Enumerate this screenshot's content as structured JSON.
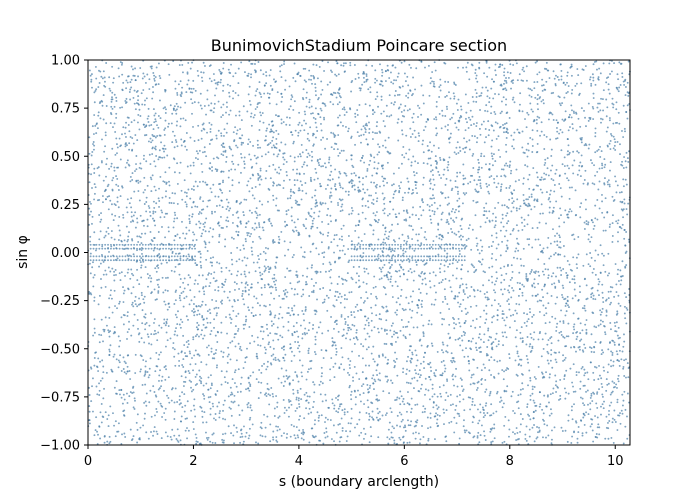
{
  "chart_data": {
    "type": "scatter",
    "title": "BunimovichStadium Poincare section",
    "xlabel": "s (boundary arclength)",
    "ylabel": "sin φ",
    "xlim": [
      0,
      10.28
    ],
    "ylim": [
      -1.0,
      1.0
    ],
    "x_ticks": [
      "0",
      "2",
      "4",
      "6",
      "8",
      "10"
    ],
    "x_tick_values": [
      0,
      2,
      4,
      6,
      8,
      10
    ],
    "y_ticks": [
      "−1.00",
      "−0.75",
      "−0.50",
      "−0.25",
      "0.00",
      "0.25",
      "0.50",
      "0.75",
      "1.00"
    ],
    "y_tick_values": [
      -1.0,
      -0.75,
      -0.5,
      -0.25,
      0.0,
      0.25,
      0.5,
      0.75,
      1.0
    ],
    "grid": false,
    "legend": "none",
    "marker_color": "#4a7fa8",
    "marker_alpha": 0.7,
    "scatter_fill": {
      "description": "densely scattered points covering the full domain",
      "x_range": [
        0,
        10.28
      ],
      "y_range": [
        -1.0,
        1.0
      ],
      "approx_points": 6500
    },
    "series": [
      {
        "values_note": "rows of evenly spaced points near sin phi = ±0.02 and ±0.04",
        "segments": [
          {
            "x_range": [
              0.05,
              2.05
            ],
            "y_levels": [
              0.04,
              0.02,
              -0.02,
              -0.04
            ]
          },
          {
            "x_range": [
              5.0,
              7.15
            ],
            "y_levels": [
              0.04,
              0.02,
              -0.02,
              -0.04
            ]
          }
        ],
        "spacing": 0.055
      }
    ]
  }
}
